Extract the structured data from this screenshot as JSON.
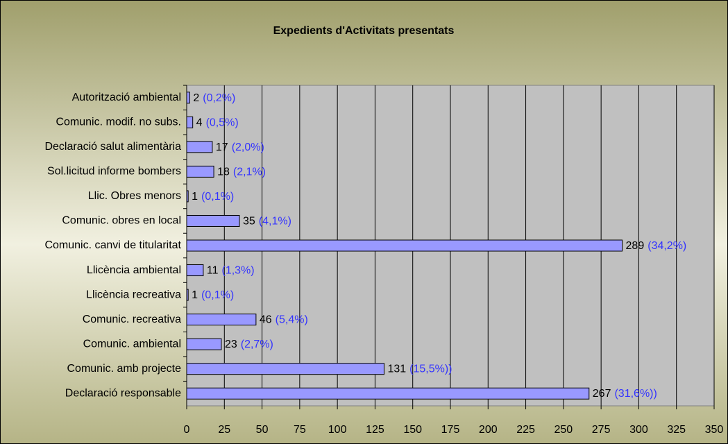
{
  "chart_data": {
    "type": "bar",
    "orientation": "horizontal",
    "title": "Expedients d'Activitats presentats",
    "categories": [
      "Autorització ambiental",
      "Comunic. modif. no subs.",
      "Declaració salut alimentària",
      "Sol.licitud informe bombers",
      "Llic. Obres menors",
      "Comunic. obres en local",
      "Comunic. canvi de titularitat",
      "Llicència ambiental",
      "Llicència recreativa",
      "Comunic. recreativa",
      "Comunic. ambiental",
      "Comunic. amb projecte",
      "Declaració responsable"
    ],
    "values": [
      2,
      4,
      17,
      18,
      1,
      35,
      289,
      11,
      1,
      46,
      23,
      131,
      267
    ],
    "percent_labels": [
      "(0,2%)",
      "(0,5%)",
      "(2,0%)",
      "(2,1%)",
      "(0,1%)",
      "(4,1%)",
      "(34,2%)",
      "(1,3%)",
      "(0,1%)",
      "(5,4%)",
      "(2,7%)",
      "(15,5%))",
      "(31,6%))"
    ],
    "color": "#9999ff",
    "xlim": [
      0,
      350
    ],
    "xticks": [
      0,
      25,
      50,
      75,
      100,
      125,
      150,
      175,
      200,
      225,
      250,
      275,
      300,
      325,
      350
    ],
    "grid": true
  }
}
